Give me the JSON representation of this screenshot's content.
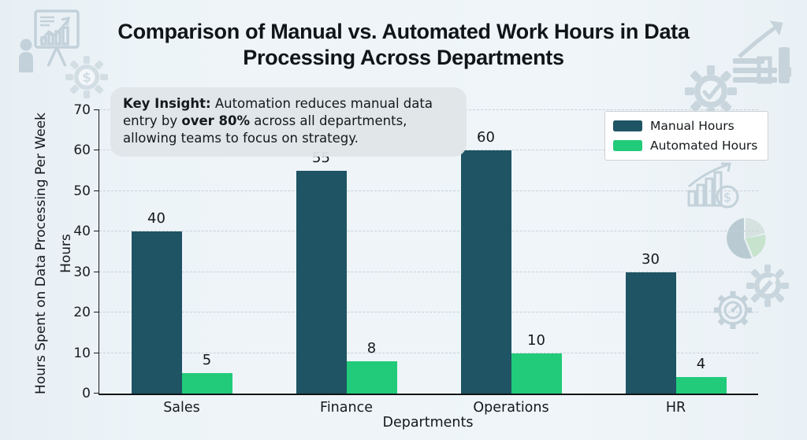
{
  "title": "Comparison of Manual vs. Automated Work Hours in Data Processing Across Departments",
  "insight": {
    "label_bold": "Key Insight:",
    "text_a": "Automation reduces manual data entry by",
    "highlight_bold": "over 80%",
    "text_b": "across all departments, allowing teams to focus on strategy."
  },
  "chart_data": {
    "type": "bar",
    "categories": [
      "Sales",
      "Finance",
      "Operations",
      "HR"
    ],
    "series": [
      {
        "name": "Manual Hours",
        "color": "#1e5463",
        "values": [
          40,
          55,
          60,
          30
        ]
      },
      {
        "name": "Automated Hours",
        "color": "#22cb7a",
        "values": [
          5,
          8,
          10,
          4
        ]
      }
    ],
    "title": "Comparison of Manual vs. Automated Work Hours in Data Processing Across Departments",
    "xlabel": "Departments",
    "ylabel": "Hours Spent on Data Processing Per Week",
    "ylabel_secondary": "Hours",
    "ylim": [
      0,
      70
    ],
    "yticks": [
      0,
      10,
      20,
      30,
      40,
      50,
      60,
      70
    ],
    "grid": "horizontal-dashed",
    "legend_position": "upper-right",
    "bar_value_labels": true
  },
  "decor_icons": [
    "presentation-chart-icon",
    "dollar-gear-icon",
    "report-trend-icon",
    "check-gear-icon",
    "growth-dollar-icon",
    "pie-chart-icon",
    "gauge-gear-icon",
    "wrench-gear-icon"
  ]
}
